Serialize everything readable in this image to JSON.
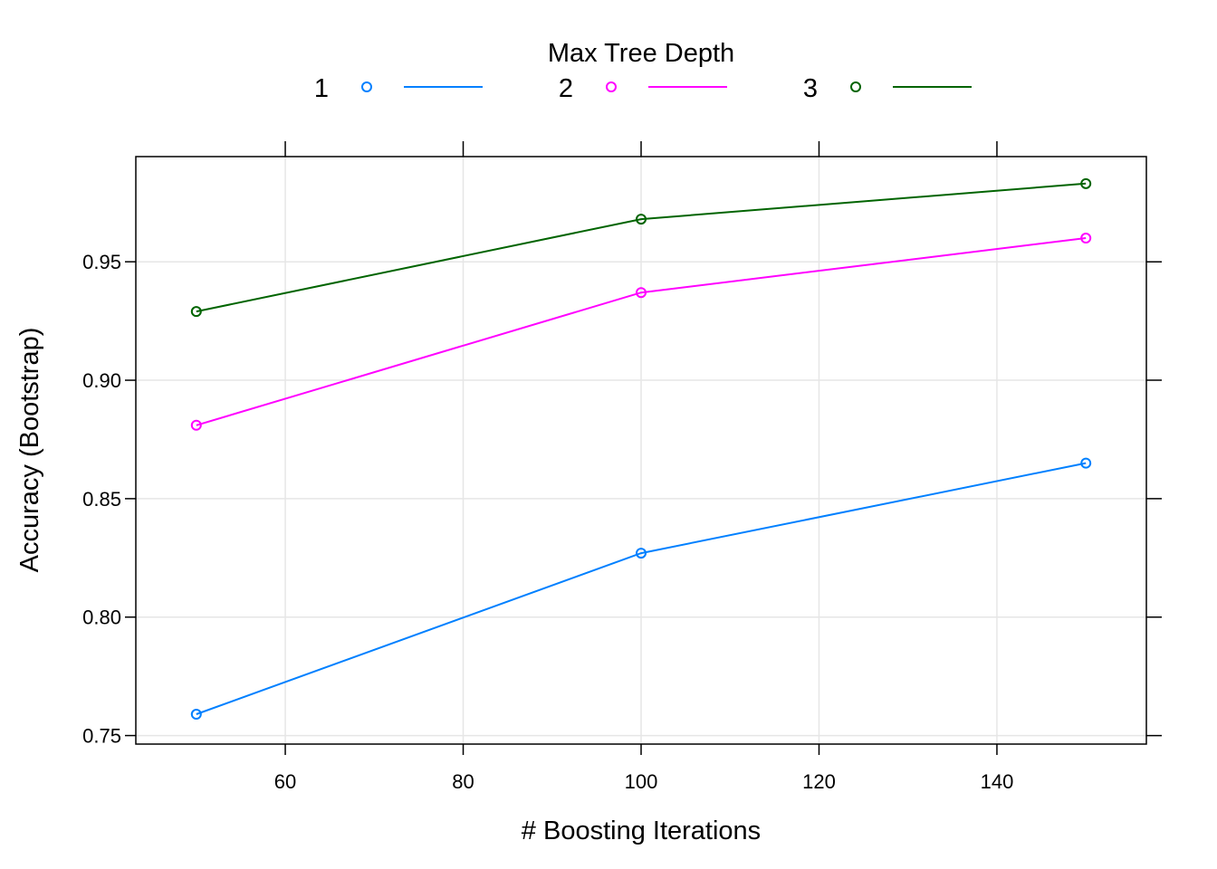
{
  "chart_data": {
    "type": "line",
    "title": "",
    "xlabel": "# Boosting Iterations",
    "ylabel": "Accuracy (Bootstrap)",
    "xlim": [
      43.2,
      156.8
    ],
    "ylim": [
      0.7464,
      0.9944
    ],
    "x_ticks": [
      60,
      80,
      100,
      120,
      140
    ],
    "x_tick_labels": [
      "60",
      "80",
      "100",
      "120",
      "140"
    ],
    "y_ticks": [
      0.75,
      0.8,
      0.85,
      0.9,
      0.95
    ],
    "y_tick_labels": [
      "0.75",
      "0.80",
      "0.85",
      "0.90",
      "0.95"
    ],
    "grid": true,
    "legend": {
      "title": "Max Tree Depth",
      "placement": "top"
    },
    "x": [
      50,
      100,
      150
    ],
    "series": [
      {
        "name": "1",
        "color": "#0080ff",
        "values": [
          0.759,
          0.827,
          0.865
        ]
      },
      {
        "name": "2",
        "color": "#ff00ff",
        "values": [
          0.881,
          0.937,
          0.96
        ]
      },
      {
        "name": "3",
        "color": "#006400",
        "values": [
          0.929,
          0.968,
          0.983
        ]
      }
    ]
  }
}
